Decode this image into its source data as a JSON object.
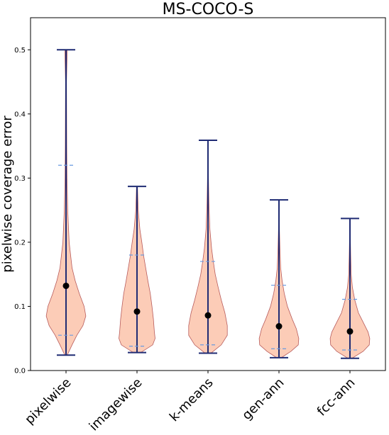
{
  "chart_data": {
    "type": "violin",
    "title": "MS-COCO-S",
    "xlabel": "",
    "ylabel": "pixelwise coverage error",
    "ylim": [
      0,
      0.55
    ],
    "yticks": [
      0.0,
      0.1,
      0.2,
      0.3,
      0.4,
      0.5
    ],
    "ytick_labels": [
      "0.0",
      "0.1",
      "0.2",
      "0.3",
      "0.4",
      "0.5"
    ],
    "categories": [
      "pixelwise",
      "imagewise",
      "k-means",
      "gen-ann",
      "fcc-ann"
    ],
    "series": [
      {
        "category": "pixelwise",
        "min": 0.024,
        "max": 0.5,
        "mean": 0.132,
        "quantile_low": 0.055,
        "quantile_high": 0.32,
        "density": [
          [
            0.024,
            0.05
          ],
          [
            0.04,
            0.25
          ],
          [
            0.055,
            0.45
          ],
          [
            0.07,
            0.7
          ],
          [
            0.085,
            0.82
          ],
          [
            0.1,
            0.75
          ],
          [
            0.12,
            0.55
          ],
          [
            0.14,
            0.38
          ],
          [
            0.16,
            0.25
          ],
          [
            0.2,
            0.13
          ],
          [
            0.25,
            0.07
          ],
          [
            0.3,
            0.04
          ],
          [
            0.35,
            0.03
          ],
          [
            0.4,
            0.025
          ],
          [
            0.45,
            0.02
          ],
          [
            0.5,
            0.05
          ]
        ]
      },
      {
        "category": "imagewise",
        "min": 0.028,
        "max": 0.287,
        "mean": 0.092,
        "quantile_low": 0.038,
        "quantile_high": 0.18,
        "density": [
          [
            0.028,
            0.15
          ],
          [
            0.04,
            0.65
          ],
          [
            0.05,
            0.75
          ],
          [
            0.06,
            0.72
          ],
          [
            0.08,
            0.68
          ],
          [
            0.1,
            0.62
          ],
          [
            0.12,
            0.55
          ],
          [
            0.14,
            0.45
          ],
          [
            0.16,
            0.36
          ],
          [
            0.18,
            0.27
          ],
          [
            0.2,
            0.2
          ],
          [
            0.22,
            0.12
          ],
          [
            0.25,
            0.05
          ],
          [
            0.287,
            0.02
          ]
        ]
      },
      {
        "category": "k-means",
        "min": 0.027,
        "max": 0.359,
        "mean": 0.086,
        "quantile_low": 0.04,
        "quantile_high": 0.17,
        "density": [
          [
            0.027,
            0.12
          ],
          [
            0.04,
            0.55
          ],
          [
            0.055,
            0.8
          ],
          [
            0.07,
            0.8
          ],
          [
            0.09,
            0.7
          ],
          [
            0.11,
            0.55
          ],
          [
            0.13,
            0.42
          ],
          [
            0.15,
            0.3
          ],
          [
            0.17,
            0.22
          ],
          [
            0.19,
            0.15
          ],
          [
            0.22,
            0.08
          ],
          [
            0.26,
            0.04
          ],
          [
            0.3,
            0.02
          ],
          [
            0.359,
            0.01
          ]
        ]
      },
      {
        "category": "gen-ann",
        "min": 0.02,
        "max": 0.266,
        "mean": 0.069,
        "quantile_low": 0.034,
        "quantile_high": 0.133,
        "density": [
          [
            0.02,
            0.1
          ],
          [
            0.03,
            0.5
          ],
          [
            0.04,
            0.8
          ],
          [
            0.05,
            0.82
          ],
          [
            0.065,
            0.72
          ],
          [
            0.08,
            0.55
          ],
          [
            0.1,
            0.35
          ],
          [
            0.12,
            0.22
          ],
          [
            0.14,
            0.13
          ],
          [
            0.16,
            0.07
          ],
          [
            0.19,
            0.04
          ],
          [
            0.22,
            0.02
          ],
          [
            0.266,
            0.01
          ]
        ]
      },
      {
        "category": "fcc-ann",
        "min": 0.019,
        "max": 0.237,
        "mean": 0.061,
        "quantile_low": 0.032,
        "quantile_high": 0.111,
        "density": [
          [
            0.019,
            0.08
          ],
          [
            0.03,
            0.55
          ],
          [
            0.04,
            0.8
          ],
          [
            0.05,
            0.82
          ],
          [
            0.06,
            0.75
          ],
          [
            0.075,
            0.55
          ],
          [
            0.09,
            0.35
          ],
          [
            0.11,
            0.2
          ],
          [
            0.13,
            0.1
          ],
          [
            0.15,
            0.05
          ],
          [
            0.18,
            0.03
          ],
          [
            0.2,
            0.02
          ],
          [
            0.237,
            0.01
          ]
        ]
      }
    ],
    "colors": {
      "violin_fill": "#fcc9b3",
      "violin_edge": "#b85c5c",
      "whisker": "#1f2b73",
      "quantile": "#6a9be0",
      "mean_marker": "#000000"
    },
    "grid": false,
    "legend": "none"
  }
}
